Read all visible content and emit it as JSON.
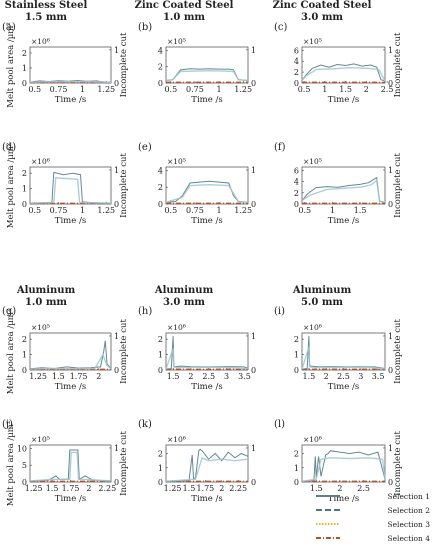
{
  "legend": [
    {
      "name": "Selection 1",
      "color": "#5f7f8a",
      "dash": "solid"
    },
    {
      "name": "Selection 2",
      "color": "#4d6f9c",
      "dash": "long-dash"
    },
    {
      "name": "Selection 3",
      "color": "#f2b21c",
      "dash": "dotted"
    },
    {
      "name": "Selection 4",
      "color": "#b5502a",
      "dash": "dash-dot"
    }
  ],
  "section_titles": [
    {
      "material": "Stainless Steel",
      "thickness": "1.5 mm"
    },
    {
      "material": "Zinc Coated Steel",
      "thickness": "1.0 mm"
    },
    {
      "material": "Zinc Coated Steel",
      "thickness": "3.0 mm"
    },
    {
      "material": "Aluminum",
      "thickness": "1.0 mm"
    },
    {
      "material": "Aluminum",
      "thickness": "3.0 mm"
    },
    {
      "material": "Aluminum",
      "thickness": "5.0 mm"
    }
  ],
  "chart_data": [
    {
      "letter": "(a)",
      "type": "line",
      "xlabel": "Time /s",
      "ylabel": "Melt pool area /µm²",
      "ylabel_right": "Incomplete cut",
      "multiplier": "×10⁶",
      "xlim": [
        0.45,
        1.3
      ],
      "xticks": [
        "0.5",
        "0.75",
        "1",
        "1.25"
      ],
      "xtick_values": [
        0.5,
        0.75,
        1.0,
        1.25
      ],
      "ylim": [
        0,
        2.4
      ],
      "yticks": [
        "0",
        "1",
        "2"
      ],
      "ytick_values": [
        0,
        1,
        2
      ],
      "yrticks": [
        "0",
        "1"
      ],
      "series": [
        {
          "x": [
            0.45,
            0.55,
            0.65,
            0.75,
            0.85,
            0.95,
            1.05,
            1.15,
            1.22,
            1.3
          ],
          "y": [
            0.06,
            0.14,
            0.1,
            0.15,
            0.12,
            0.17,
            0.11,
            0.14,
            0.07,
            0.05
          ]
        },
        {
          "x": [
            0.45,
            0.6,
            0.8,
            1.0,
            1.2,
            1.3
          ],
          "y": [
            0.05,
            0.09,
            0.08,
            0.1,
            0.07,
            0.04
          ]
        }
      ]
    },
    {
      "letter": "(b)",
      "type": "line",
      "xlabel": "Time /s",
      "ylabel": "",
      "ylabel_right": "",
      "multiplier": "×10⁵",
      "xlim": [
        0.45,
        1.3
      ],
      "xticks": [
        "0.5",
        "0.75",
        "1",
        "1.25"
      ],
      "xtick_values": [
        0.5,
        0.75,
        1.0,
        1.25
      ],
      "ylim": [
        0,
        4.4
      ],
      "yticks": [
        "0",
        "2",
        "4"
      ],
      "ytick_values": [
        0,
        2,
        4
      ],
      "yrticks": [
        "0",
        "1"
      ],
      "series": [
        {
          "x": [
            0.45,
            0.52,
            0.6,
            0.7,
            0.8,
            0.9,
            1.0,
            1.1,
            1.15,
            1.2,
            1.3
          ],
          "y": [
            0.3,
            0.4,
            1.6,
            1.75,
            1.7,
            1.75,
            1.7,
            1.7,
            1.6,
            0.4,
            0.3
          ]
        },
        {
          "x": [
            0.45,
            0.52,
            0.6,
            0.75,
            0.9,
            1.05,
            1.15,
            1.2,
            1.3
          ],
          "y": [
            0.3,
            0.4,
            1.4,
            1.45,
            1.5,
            1.45,
            1.4,
            0.4,
            0.3
          ]
        }
      ]
    },
    {
      "letter": "(c)",
      "type": "line",
      "xlabel": "Time /s",
      "ylabel": "",
      "ylabel_right": "Incomplete cut",
      "multiplier": "×10⁵",
      "xlim": [
        0.45,
        2.45
      ],
      "xticks": [
        "0.5",
        "1",
        "1.5",
        "2",
        "2.5"
      ],
      "xtick_values": [
        0.5,
        1.0,
        1.5,
        2.0,
        2.5
      ],
      "ylim": [
        0,
        6.6
      ],
      "yticks": [
        "0",
        "2",
        "4",
        "6"
      ],
      "ytick_values": [
        0,
        2,
        4,
        6
      ],
      "yrticks": [
        "0",
        "1"
      ],
      "series": [
        {
          "x": [
            0.45,
            0.55,
            0.7,
            0.9,
            1.1,
            1.3,
            1.5,
            1.7,
            1.9,
            2.1,
            2.25,
            2.35,
            2.45
          ],
          "y": [
            0.5,
            1.5,
            2.7,
            3.3,
            2.9,
            3.4,
            3.2,
            3.5,
            3.1,
            3.3,
            2.9,
            0.6,
            0.4
          ]
        },
        {
          "x": [
            0.45,
            0.55,
            0.8,
            1.2,
            1.6,
            2.0,
            2.3,
            2.45
          ],
          "y": [
            0.5,
            1.3,
            2.5,
            2.6,
            2.8,
            2.7,
            2.5,
            0.4
          ]
        }
      ]
    },
    {
      "letter": "(d)",
      "type": "line",
      "xlabel": "Time /s",
      "ylabel": "Melt pool area /µm²",
      "ylabel_right": "Incomplete cut",
      "multiplier": "×10⁶",
      "xlim": [
        0.45,
        1.3
      ],
      "xticks": [
        "0.5",
        "0.75",
        "1",
        "1.25"
      ],
      "xtick_values": [
        0.5,
        0.75,
        1.0,
        1.25
      ],
      "ylim": [
        0,
        2.4
      ],
      "yticks": [
        "0",
        "1",
        "2"
      ],
      "ytick_values": [
        0,
        1,
        2
      ],
      "yrticks": [
        "0",
        "1"
      ],
      "series": [
        {
          "x": [
            0.45,
            0.6,
            0.68,
            0.7,
            0.8,
            0.9,
            0.98,
            1.0,
            1.1,
            1.3
          ],
          "y": [
            0.05,
            0.08,
            0.1,
            2.05,
            1.9,
            2.0,
            1.9,
            0.15,
            0.08,
            0.05
          ]
        },
        {
          "x": [
            0.45,
            0.7,
            0.72,
            0.95,
            0.97,
            1.3
          ],
          "y": [
            0.05,
            0.1,
            1.7,
            1.6,
            0.1,
            0.05
          ]
        }
      ]
    },
    {
      "letter": "(e)",
      "type": "line",
      "xlabel": "Time /s",
      "ylabel": "",
      "ylabel_right": "",
      "multiplier": "×10⁵",
      "xlim": [
        0.45,
        1.3
      ],
      "xticks": [
        "0.5",
        "0.75",
        "1",
        "1.25"
      ],
      "xtick_values": [
        0.5,
        0.75,
        1.0,
        1.25
      ],
      "ylim": [
        0,
        4.4
      ],
      "yticks": [
        "0",
        "2",
        "4"
      ],
      "ytick_values": [
        0,
        2,
        4
      ],
      "yrticks": [
        "0",
        "1"
      ],
      "series": [
        {
          "x": [
            0.45,
            0.55,
            0.62,
            0.7,
            0.8,
            0.9,
            1.0,
            1.1,
            1.15,
            1.2,
            1.3
          ],
          "y": [
            0.2,
            0.3,
            1.0,
            2.5,
            2.6,
            2.7,
            2.6,
            2.5,
            1.0,
            0.3,
            0.2
          ]
        },
        {
          "x": [
            0.45,
            0.62,
            0.7,
            0.9,
            1.1,
            1.2,
            1.3
          ],
          "y": [
            0.2,
            0.8,
            2.2,
            2.3,
            2.2,
            0.3,
            0.2
          ]
        }
      ]
    },
    {
      "letter": "(f)",
      "type": "line",
      "xlabel": "Time /s",
      "ylabel": "",
      "ylabel_right": "Incomplete cut",
      "multiplier": "×10⁵",
      "xlim": [
        0.45,
        1.95
      ],
      "xticks": [
        "0.5",
        "1",
        "1.5"
      ],
      "xtick_values": [
        0.5,
        1.0,
        1.5
      ],
      "ylim": [
        0,
        6.6
      ],
      "yticks": [
        "0",
        "2",
        "4",
        "6"
      ],
      "ytick_values": [
        0,
        2,
        4,
        6
      ],
      "yrticks": [
        "0",
        "1"
      ],
      "series": [
        {
          "x": [
            0.45,
            0.55,
            0.7,
            0.9,
            1.1,
            1.3,
            1.5,
            1.65,
            1.75,
            1.8,
            1.85,
            1.95
          ],
          "y": [
            0.6,
            1.8,
            2.9,
            3.1,
            3.0,
            3.3,
            3.5,
            3.8,
            4.4,
            4.7,
            0.5,
            0.3
          ]
        },
        {
          "x": [
            0.45,
            0.6,
            0.9,
            1.2,
            1.5,
            1.7,
            1.8,
            1.85,
            1.95
          ],
          "y": [
            0.6,
            1.6,
            2.6,
            2.8,
            3.0,
            3.4,
            4.2,
            0.5,
            0.3
          ]
        }
      ]
    },
    {
      "letter": "(g)",
      "type": "line",
      "xlabel": "Time /s",
      "ylabel": "Melt pool area /µm²",
      "ylabel_right": "Incomplete cut",
      "multiplier": "×10⁵",
      "xlim": [
        1.15,
        2.15
      ],
      "xticks": [
        "1.25",
        "1.5",
        "1.75",
        "2"
      ],
      "xtick_values": [
        1.25,
        1.5,
        1.75,
        2.0
      ],
      "ylim": [
        0,
        2.4
      ],
      "yticks": [
        "0",
        "1",
        "2"
      ],
      "ytick_values": [
        0,
        1,
        2
      ],
      "yrticks": [
        "0",
        "1"
      ],
      "series": [
        {
          "x": [
            1.15,
            1.3,
            1.45,
            1.6,
            1.75,
            1.9,
            2.02,
            2.06,
            2.08,
            2.1,
            2.15
          ],
          "y": [
            0.08,
            0.15,
            0.1,
            0.2,
            0.12,
            0.15,
            0.2,
            1.2,
            1.9,
            0.4,
            0.1
          ]
        },
        {
          "x": [
            1.15,
            1.4,
            1.7,
            1.95,
            2.05,
            2.1,
            2.15
          ],
          "y": [
            0.06,
            0.1,
            0.08,
            0.1,
            1.0,
            0.3,
            0.08
          ]
        }
      ]
    },
    {
      "letter": "(h)",
      "type": "line",
      "xlabel": "Time /s",
      "ylabel": "",
      "ylabel_right": "",
      "multiplier": "×10⁶",
      "xlim": [
        1.3,
        3.6
      ],
      "xticks": [
        "1.5",
        "2",
        "2.5",
        "3",
        "3.5"
      ],
      "xtick_values": [
        1.5,
        2.0,
        2.5,
        3.0,
        3.5
      ],
      "ylim": [
        0,
        2.4
      ],
      "yticks": [
        "0",
        "1",
        "2"
      ],
      "ytick_values": [
        0,
        1,
        2
      ],
      "yrticks": [
        "0",
        "1"
      ],
      "series": [
        {
          "x": [
            1.3,
            1.45,
            1.5,
            1.52,
            1.55,
            1.7,
            2.0,
            2.5,
            3.0,
            3.5,
            3.6
          ],
          "y": [
            0.05,
            0.1,
            2.2,
            0.3,
            0.2,
            0.25,
            0.22,
            0.2,
            0.22,
            0.2,
            0.1
          ]
        },
        {
          "x": [
            1.3,
            1.5,
            1.52,
            1.6,
            2.2,
            3.0,
            3.6
          ],
          "y": [
            0.05,
            1.4,
            0.2,
            0.15,
            0.18,
            0.16,
            0.08
          ]
        }
      ]
    },
    {
      "letter": "(i)",
      "type": "line",
      "xlabel": "Time /s",
      "ylabel": "",
      "ylabel_right": "Incomplete cut",
      "multiplier": "×10⁶",
      "xlim": [
        1.3,
        3.7
      ],
      "xticks": [
        "1.5",
        "2",
        "2.5",
        "3",
        "3.5"
      ],
      "xtick_values": [
        1.5,
        2.0,
        2.5,
        3.0,
        3.5
      ],
      "ylim": [
        0,
        2.4
      ],
      "yticks": [
        "0",
        "1",
        "2"
      ],
      "ytick_values": [
        0,
        1,
        2
      ],
      "yrticks": [
        "0",
        "1"
      ],
      "series": [
        {
          "x": [
            1.3,
            1.45,
            1.5,
            1.52,
            1.55,
            1.8,
            2.2,
            2.6,
            3.0,
            3.4,
            3.7
          ],
          "y": [
            0.05,
            0.1,
            2.2,
            0.3,
            0.25,
            0.2,
            0.22,
            0.2,
            0.21,
            0.2,
            0.1
          ]
        },
        {
          "x": [
            1.3,
            1.5,
            1.52,
            1.7,
            2.5,
            3.3,
            3.7
          ],
          "y": [
            0.05,
            1.5,
            0.2,
            0.15,
            0.17,
            0.16,
            0.08
          ]
        }
      ]
    },
    {
      "letter": "(j)",
      "type": "line",
      "xlabel": "Time /s",
      "ylabel": "Melt pool area /µm²",
      "ylabel_right": "Incomplete cut",
      "multiplier": "×10⁵",
      "xlim": [
        1.2,
        2.3
      ],
      "xticks": [
        "1.25",
        "1.5",
        "1.75",
        "2",
        "2.25"
      ],
      "xtick_values": [
        1.25,
        1.5,
        1.75,
        2.0,
        2.25
      ],
      "ylim": [
        0,
        11
      ],
      "yticks": [
        "0",
        "5",
        "10"
      ],
      "ytick_values": [
        0,
        5,
        10
      ],
      "yrticks": [
        "0",
        "1"
      ],
      "series": [
        {
          "x": [
            1.2,
            1.45,
            1.55,
            1.6,
            1.72,
            1.74,
            1.85,
            1.87,
            1.95,
            2.05,
            2.3
          ],
          "y": [
            0.3,
            0.5,
            1.8,
            0.8,
            0.8,
            9.5,
            9.5,
            0.8,
            1.8,
            0.6,
            0.3
          ]
        },
        {
          "x": [
            1.2,
            1.5,
            1.74,
            1.76,
            1.84,
            1.86,
            2.0,
            2.3
          ],
          "y": [
            0.3,
            0.8,
            0.8,
            8.8,
            8.8,
            0.8,
            0.7,
            0.3
          ]
        }
      ]
    },
    {
      "letter": "(k)",
      "type": "line",
      "xlabel": "Time /s",
      "ylabel": "",
      "ylabel_right": "",
      "multiplier": "×10⁶",
      "xlim": [
        1.15,
        2.4
      ],
      "xticks": [
        "1.25",
        "1.5",
        "1.75",
        "2",
        "2.25"
      ],
      "xtick_values": [
        1.25,
        1.5,
        1.75,
        2.0,
        2.25
      ],
      "ylim": [
        0,
        2.6
      ],
      "yticks": [
        "0",
        "1",
        "2"
      ],
      "ytick_values": [
        0,
        1,
        2
      ],
      "yrticks": [
        "0",
        "1"
      ],
      "series": [
        {
          "x": [
            1.15,
            1.5,
            1.55,
            1.57,
            1.6,
            1.65,
            1.67,
            1.7,
            1.8,
            1.9,
            2.0,
            2.1,
            2.2,
            2.3,
            2.4
          ],
          "y": [
            0.05,
            0.1,
            1.9,
            0.2,
            0.3,
            2.2,
            2.3,
            2.2,
            1.6,
            2.0,
            1.5,
            2.1,
            1.7,
            2.0,
            1.8
          ]
        },
        {
          "x": [
            1.15,
            1.6,
            1.7,
            1.8,
            2.0,
            2.2,
            2.4
          ],
          "y": [
            0.05,
            0.2,
            1.7,
            1.5,
            1.6,
            1.5,
            1.6
          ]
        }
      ]
    },
    {
      "letter": "(l)",
      "type": "line",
      "xlabel": "Time /s",
      "ylabel": "",
      "ylabel_right": "Incomplete cut",
      "multiplier": "×10⁶",
      "xlim": [
        1.2,
        2.95
      ],
      "xticks": [
        "1.5",
        "2",
        "2.5"
      ],
      "xtick_values": [
        1.5,
        2.0,
        2.5
      ],
      "ylim": [
        0,
        2.6
      ],
      "yticks": [
        "0",
        "1",
        "2"
      ],
      "ytick_values": [
        0,
        1,
        2
      ],
      "yrticks": [
        "0",
        "1"
      ],
      "series": [
        {
          "x": [
            1.2,
            1.45,
            1.48,
            1.5,
            1.55,
            1.6,
            1.7,
            1.75,
            1.8,
            2.0,
            2.2,
            2.4,
            2.6,
            2.8,
            2.95
          ],
          "y": [
            0.05,
            0.1,
            1.8,
            0.3,
            1.8,
            0.4,
            1.9,
            2.0,
            2.2,
            2.1,
            2.0,
            2.1,
            1.9,
            2.1,
            0.2
          ]
        },
        {
          "x": [
            1.2,
            1.5,
            1.6,
            1.8,
            2.2,
            2.6,
            2.9,
            2.95
          ],
          "y": [
            0.05,
            0.2,
            1.6,
            1.7,
            1.65,
            1.7,
            1.6,
            0.2
          ]
        }
      ]
    }
  ]
}
